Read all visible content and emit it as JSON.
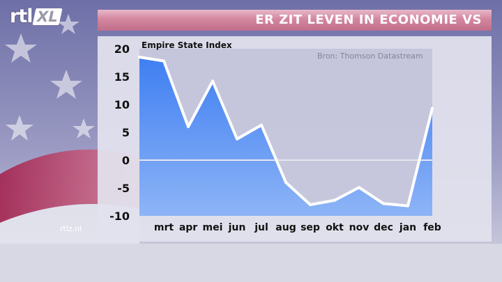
{
  "broadcast": {
    "logo_main": "rtl",
    "logo_badge": "XL",
    "headline": "ER ZIT LEVEN IN ECONOMIE VS",
    "website": "rtlz.nl",
    "colors": {
      "headline_bar": "#d4869f",
      "series_line": "#ffffff",
      "area_fill": "#4f8cf3"
    }
  },
  "chart_data": {
    "type": "area",
    "title": "Empire State Index",
    "source": "Bron: Thomson Datastream",
    "categories": [
      "",
      "mrt",
      "apr",
      "mei",
      "jun",
      "jul",
      "aug",
      "sep",
      "okt",
      "nov",
      "dec",
      "jan",
      "feb"
    ],
    "series": [
      {
        "values": [
          18.5,
          17.8,
          6,
          14.2,
          3.8,
          6.3,
          -4,
          -8,
          -7.2,
          -4.9,
          -7.8,
          -8.2,
          9.3
        ]
      }
    ],
    "y_ticks": [
      "20",
      "15",
      "10",
      "5",
      "0",
      "-5",
      "-10"
    ],
    "ylim": [
      -10,
      20
    ],
    "grid": false,
    "zero_line": true,
    "legend": "none"
  }
}
